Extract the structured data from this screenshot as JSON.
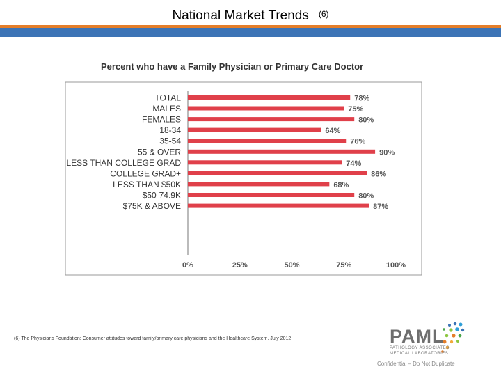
{
  "slide": {
    "title": "National Market Trends",
    "title_ref": "(6)",
    "footnote": "(6) The Physicians Foundation: Consumer attitudes toward family/primary care physicians and the Healthcare System, July 2012",
    "confidential": "Confidential – Do Not Duplicate",
    "accent_orange": "#e57e2a",
    "accent_blue": "#3c74b6"
  },
  "logo": {
    "name": "PAML",
    "line1": "PATHOLOGY ASSOCIATES",
    "line2": "MEDICAL LABORATORIES"
  },
  "chart_data": {
    "type": "bar",
    "orientation": "horizontal",
    "title": "Percent who have a Family Physician or Primary Care Doctor",
    "categories": [
      "TOTAL",
      "MALES",
      "FEMALES",
      "18-34",
      "35-54",
      "55 & OVER",
      "LESS THAN COLLEGE GRAD",
      "COLLEGE GRAD+",
      "LESS THAN $50K",
      "$50-74.9K",
      "$75K & ABOVE"
    ],
    "values": [
      78,
      75,
      80,
      64,
      76,
      90,
      74,
      86,
      68,
      80,
      87
    ],
    "value_labels": [
      "78%",
      "75%",
      "80%",
      "64%",
      "76%",
      "90%",
      "74%",
      "86%",
      "68%",
      "80%",
      "87%"
    ],
    "groups": [
      [
        0
      ],
      [
        1,
        2
      ],
      [
        3,
        4,
        5
      ],
      [
        6,
        7
      ],
      [
        8,
        9,
        10
      ]
    ],
    "xticks": [
      "0%",
      "25%",
      "50%",
      "75%",
      "100%"
    ],
    "xtick_values": [
      0,
      25,
      50,
      75,
      100
    ],
    "xlim": [
      0,
      100
    ],
    "bar_color": "#e0404a",
    "grid": false,
    "legend": false
  }
}
